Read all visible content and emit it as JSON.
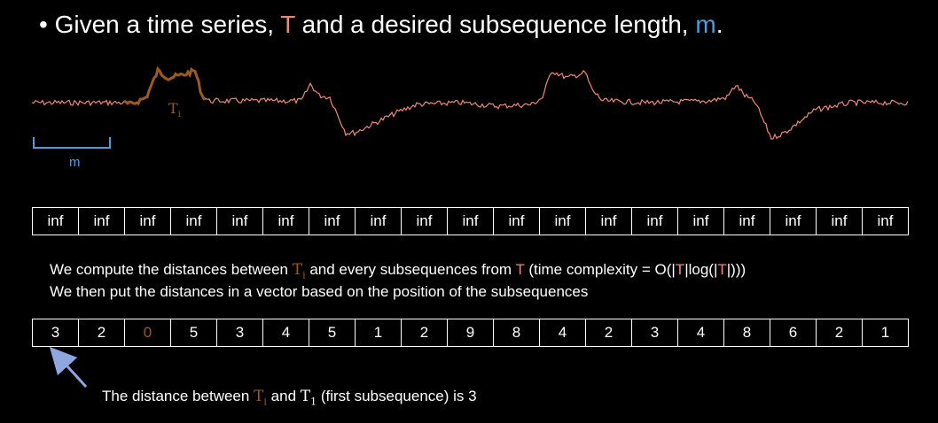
{
  "title": {
    "bullet": "•",
    "part1": "Given a time series, ",
    "t": "T",
    "part2": " and a desired subsequence length, ",
    "m": "m",
    "part3": "."
  },
  "series": {
    "subsequence_label": "T",
    "subsequence_sub": "i",
    "m_label": "m",
    "colors": {
      "series": "#f08878",
      "subsequence": "#9a5a22",
      "bracket": "#4f9bde"
    }
  },
  "inf_row": [
    "inf",
    "inf",
    "inf",
    "inf",
    "inf",
    "inf",
    "inf",
    "inf",
    "inf",
    "inf",
    "inf",
    "inf",
    "inf",
    "inf",
    "inf",
    "inf",
    "inf",
    "inf",
    "inf"
  ],
  "description": {
    "line1_a": "We compute the distances between ",
    "line1_ti": "T",
    "line1_ti_sub": "i",
    "line1_b": " and every subsequences from ",
    "line1_t": "T",
    "line1_c": " (time complexity = O(|",
    "line1_t2": "T",
    "line1_d": "|log(|",
    "line1_t3": "T",
    "line1_e": "|)))",
    "line2": "We then put the distances in a vector based on the position of the subsequences"
  },
  "distances": [
    "3",
    "2",
    "0",
    "5",
    "3",
    "4",
    "5",
    "1",
    "2",
    "9",
    "8",
    "4",
    "2",
    "3",
    "4",
    "8",
    "6",
    "2",
    "1"
  ],
  "highlight_index": 2,
  "caption": {
    "a": "The distance between ",
    "ti": "T",
    "ti_sub": "i",
    "b": " and ",
    "t1": "T",
    "t1_sub": "1",
    "c": " (first subsequence) is 3"
  }
}
